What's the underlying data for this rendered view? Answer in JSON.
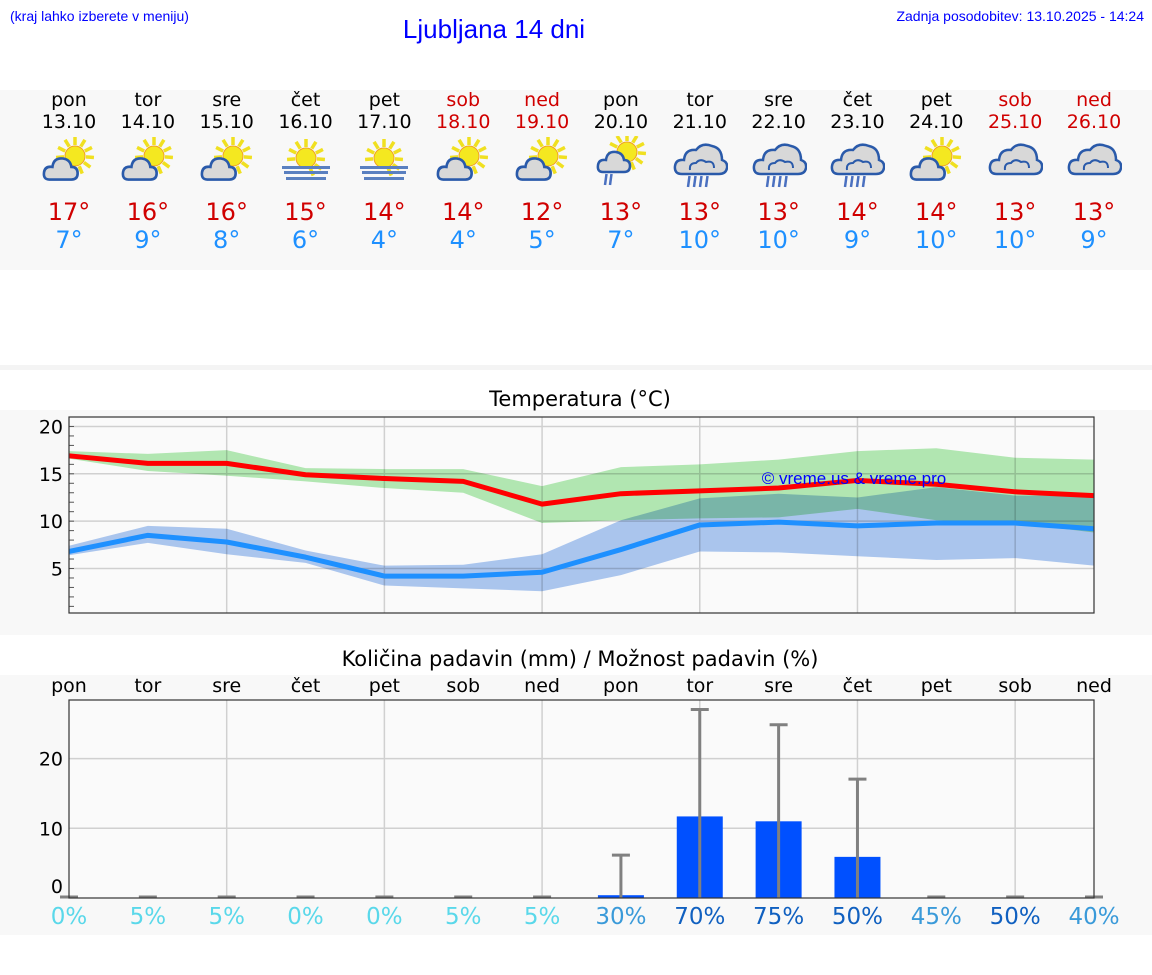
{
  "header": {
    "hint": "(kraj lahko izberete v meniju)",
    "title": "Ljubljana 14 dni",
    "updated": "Zadnja posodobitev: 13.10.2025 - 14:24"
  },
  "colors": {
    "max_temp": "#d00000",
    "min_temp": "#1e90ff",
    "weekend": "#d00000",
    "bar": "#0050ff",
    "pct_low": "#5ad8ea",
    "pct_mid": "#3a9ad9",
    "pct_high": "#1060c0"
  },
  "days": [
    {
      "name": "pon",
      "date": "13.10",
      "weekend": false,
      "icon": "partly-cloudy-icon",
      "max": "17°",
      "min": "7°"
    },
    {
      "name": "tor",
      "date": "14.10",
      "weekend": false,
      "icon": "partly-cloudy-icon",
      "max": "16°",
      "min": "9°"
    },
    {
      "name": "sre",
      "date": "15.10",
      "weekend": false,
      "icon": "partly-cloudy-icon",
      "max": "16°",
      "min": "8°"
    },
    {
      "name": "čet",
      "date": "16.10",
      "weekend": false,
      "icon": "sun-fog-icon",
      "max": "15°",
      "min": "6°"
    },
    {
      "name": "pet",
      "date": "17.10",
      "weekend": false,
      "icon": "sun-fog-icon",
      "max": "14°",
      "min": "4°"
    },
    {
      "name": "sob",
      "date": "18.10",
      "weekend": true,
      "icon": "partly-cloudy-icon",
      "max": "14°",
      "min": "4°"
    },
    {
      "name": "ned",
      "date": "19.10",
      "weekend": true,
      "icon": "partly-cloudy-icon",
      "max": "12°",
      "min": "5°"
    },
    {
      "name": "pon",
      "date": "20.10",
      "weekend": false,
      "icon": "partly-cloudy-light-rain-icon",
      "max": "13°",
      "min": "7°"
    },
    {
      "name": "tor",
      "date": "21.10",
      "weekend": false,
      "icon": "cloudy-rain-icon",
      "max": "13°",
      "min": "10°"
    },
    {
      "name": "sre",
      "date": "22.10",
      "weekend": false,
      "icon": "cloudy-rain-icon",
      "max": "13°",
      "min": "10°"
    },
    {
      "name": "čet",
      "date": "23.10",
      "weekend": false,
      "icon": "cloudy-rain-icon",
      "max": "14°",
      "min": "9°"
    },
    {
      "name": "pet",
      "date": "24.10",
      "weekend": false,
      "icon": "partly-cloudy-icon",
      "max": "14°",
      "min": "10°"
    },
    {
      "name": "sob",
      "date": "25.10",
      "weekend": true,
      "icon": "cloudy-icon",
      "max": "13°",
      "min": "10°"
    },
    {
      "name": "ned",
      "date": "26.10",
      "weekend": true,
      "icon": "cloudy-icon",
      "max": "13°",
      "min": "9°"
    }
  ],
  "chart_data": [
    {
      "type": "line",
      "title": "Temperatura (°C)",
      "watermark": "© vreme.us & vreme.pro",
      "x": [
        "13.10",
        "14.10",
        "15.10",
        "16.10",
        "17.10",
        "18.10",
        "19.10",
        "20.10",
        "21.10",
        "22.10",
        "23.10",
        "24.10",
        "25.10",
        "26.10"
      ],
      "ylim": [
        0.3,
        21
      ],
      "yticks": [
        5,
        10,
        15,
        20
      ],
      "grid": true,
      "series": [
        {
          "values": [
            16.9,
            16.1,
            16.1,
            14.9,
            14.5,
            14.2,
            11.8,
            12.9,
            13.2,
            13.5,
            14.3,
            13.9,
            13.1,
            12.7
          ],
          "color": "#ff0000",
          "band_low": [
            16.6,
            15.3,
            14.8,
            14.2,
            13.5,
            13.0,
            9.8,
            10.1,
            10.3,
            10.4,
            11.3,
            10.1,
            9.8,
            8.8
          ],
          "band_high": [
            17.4,
            17.1,
            17.5,
            15.6,
            15.5,
            15.5,
            13.7,
            15.7,
            16.0,
            16.5,
            17.4,
            17.7,
            16.7,
            16.5
          ],
          "band_color": "#a8e8a8"
        },
        {
          "values": [
            6.8,
            8.5,
            7.8,
            6.2,
            4.2,
            4.2,
            4.6,
            7.0,
            9.6,
            9.9,
            9.5,
            9.8,
            9.8,
            9.2
          ],
          "color": "#1e90ff",
          "band_low": [
            6.4,
            7.7,
            6.5,
            5.6,
            3.2,
            2.9,
            2.6,
            4.3,
            6.8,
            6.7,
            6.3,
            5.9,
            6.1,
            5.3
          ],
          "band_high": [
            7.4,
            9.5,
            9.2,
            6.9,
            5.3,
            5.4,
            6.5,
            10.1,
            12.4,
            12.9,
            12.5,
            13.6,
            12.7,
            12.7
          ],
          "band_color": "#a0c0f0"
        }
      ]
    },
    {
      "type": "bar",
      "title": "Količina padavin (mm) / Možnost padavin (%)",
      "categories": [
        "pon",
        "tor",
        "sre",
        "čet",
        "pet",
        "sob",
        "ned",
        "pon",
        "tor",
        "sre",
        "čet",
        "pet",
        "sob",
        "ned"
      ],
      "values": [
        0,
        0,
        0,
        0,
        0,
        0,
        0,
        0.4,
        11.7,
        11.0,
        5.9,
        0,
        0,
        0
      ],
      "error_max": [
        0,
        0,
        0,
        0,
        0,
        0,
        0,
        6.0,
        26.9,
        24.7,
        16.9,
        0,
        0,
        0
      ],
      "probability": [
        "0%",
        "5%",
        "5%",
        "0%",
        "0%",
        "5%",
        "5%",
        "30%",
        "70%",
        "75%",
        "50%",
        "45%",
        "50%",
        "40%"
      ],
      "probability_level": [
        "low",
        "low",
        "low",
        "low",
        "low",
        "low",
        "low",
        "mid",
        "high",
        "high",
        "high",
        "mid",
        "high",
        "mid"
      ],
      "ylim": [
        0,
        28.4
      ],
      "yticks": [
        0,
        10,
        20
      ],
      "grid": true
    }
  ]
}
